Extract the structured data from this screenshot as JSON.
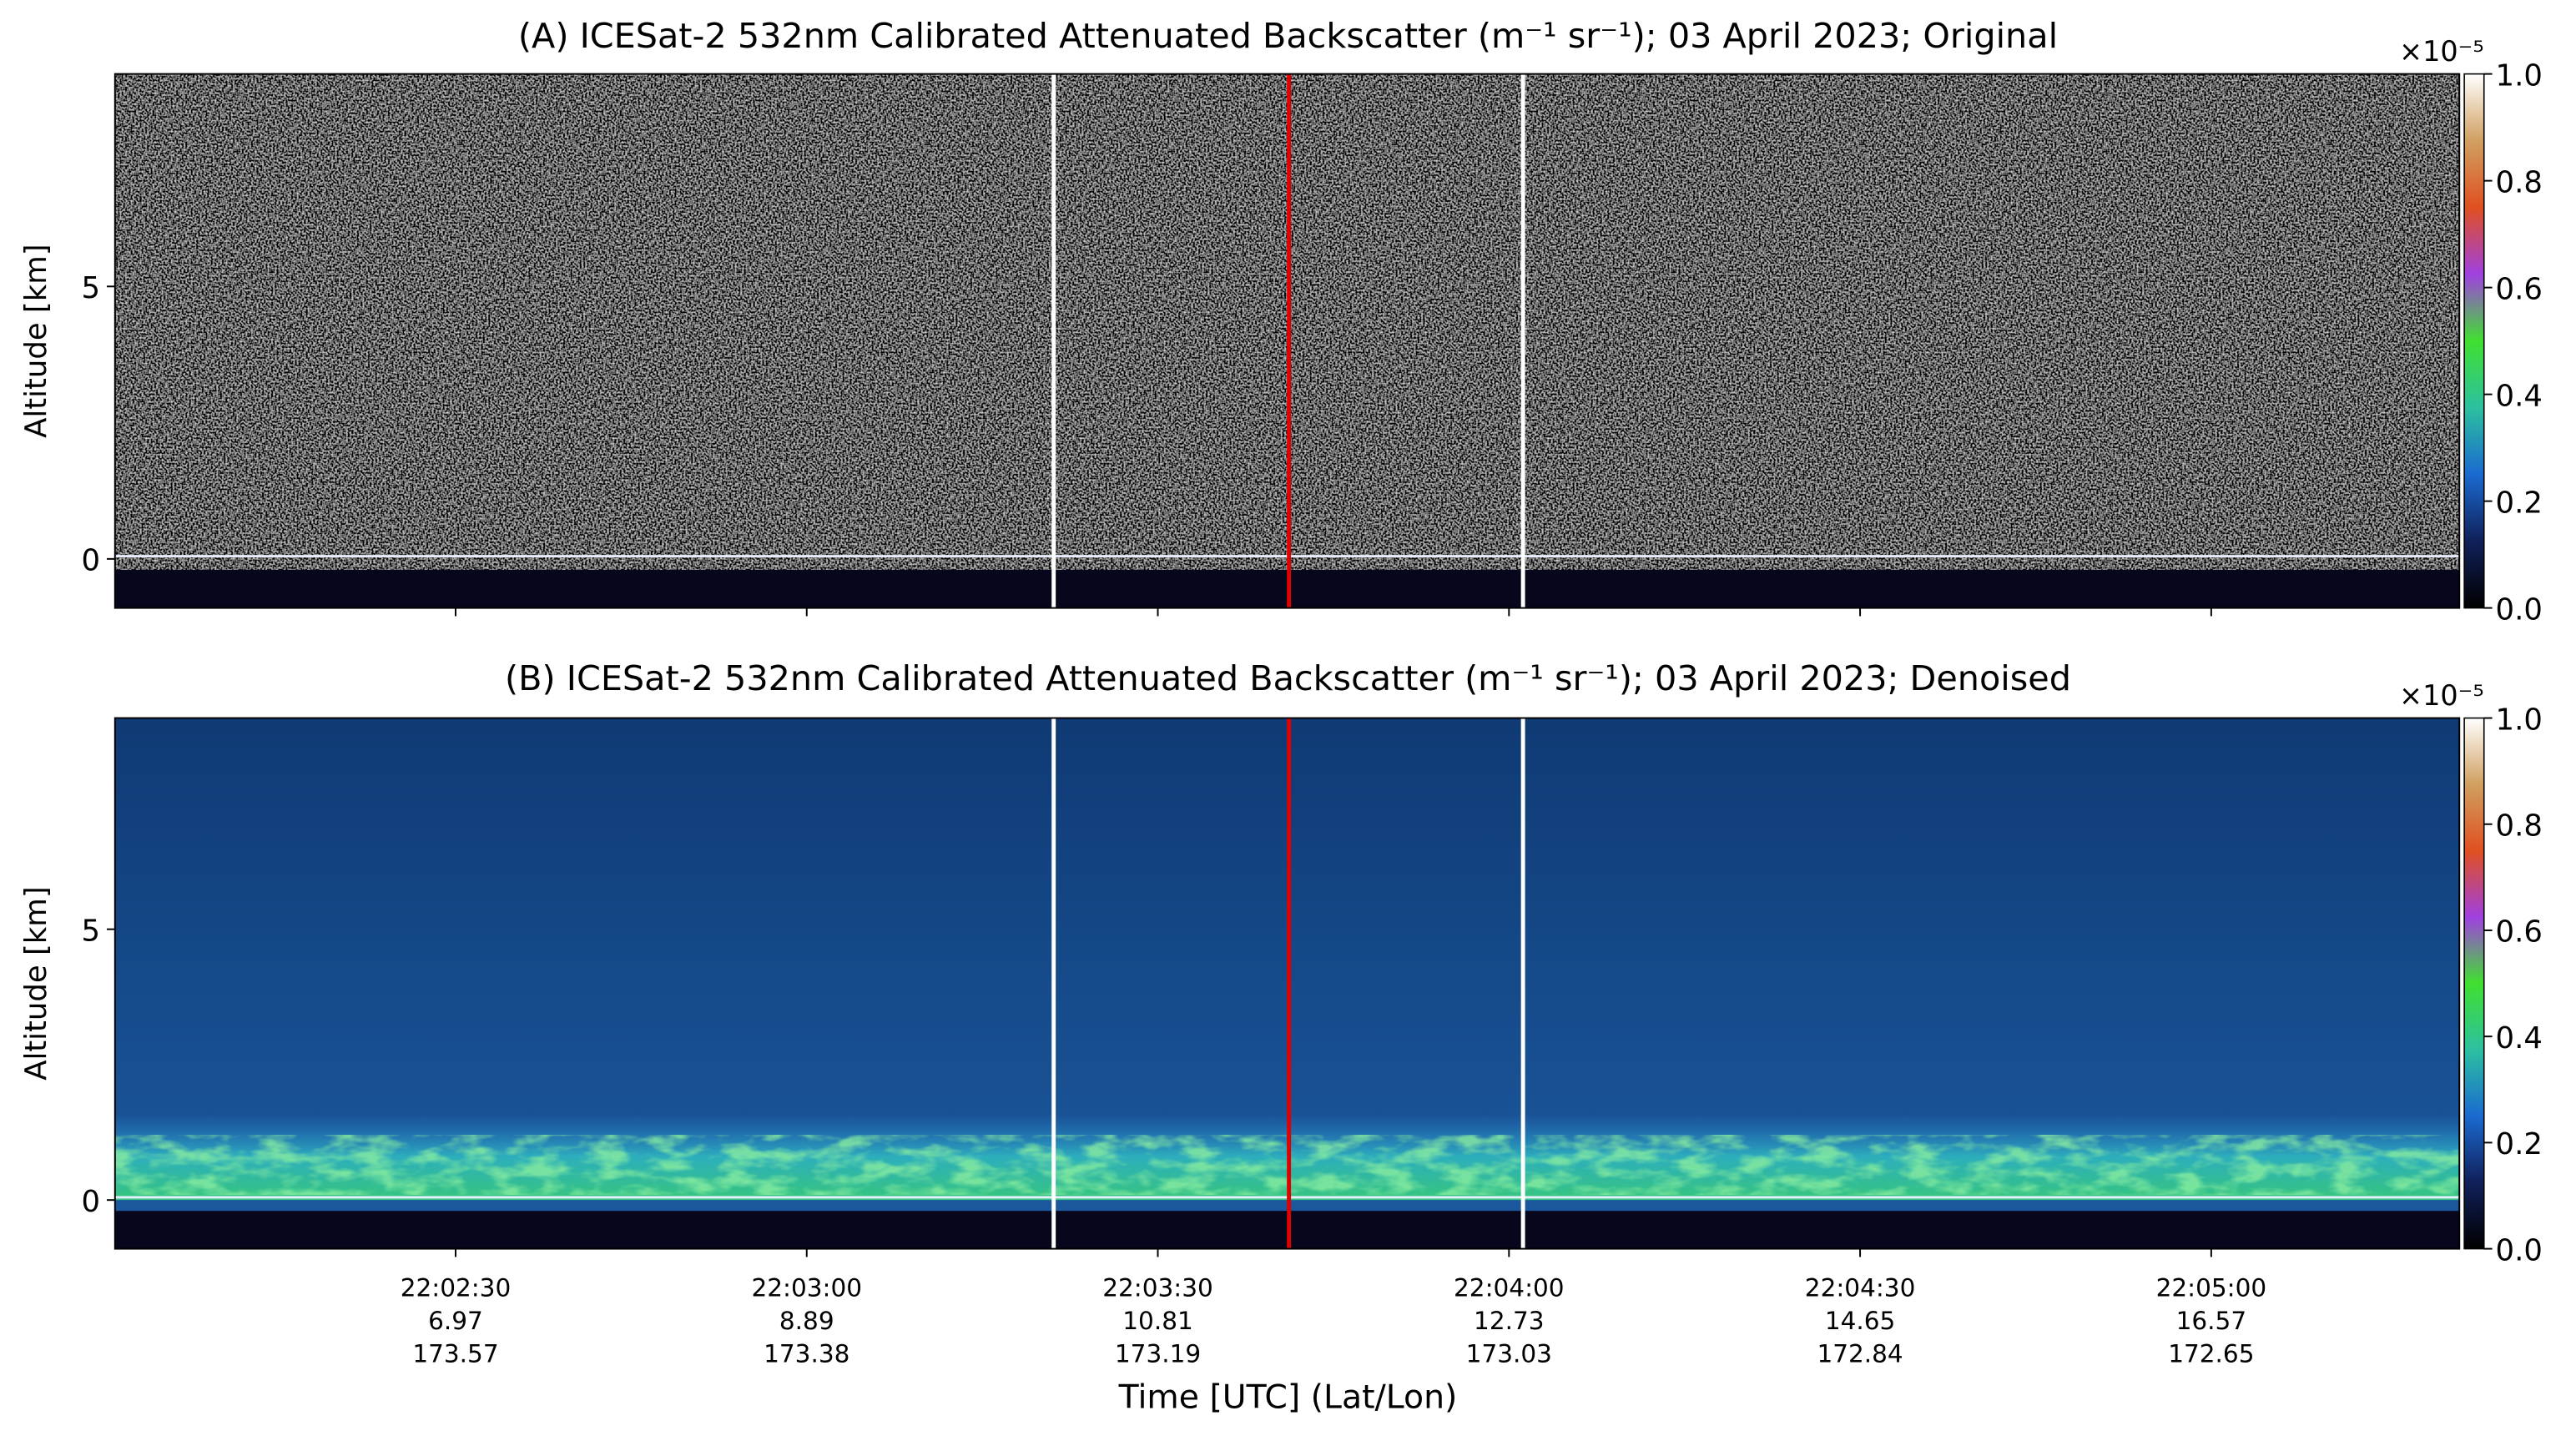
{
  "chart_data": [
    {
      "type": "heatmap",
      "title": "(A) ICESat-2 532nm Calibrated Attenuated Backscatter (m⁻¹ sr⁻¹); 03 April 2023; Original",
      "ylabel": "Altitude [km]",
      "ylim": [
        -0.9,
        8.9
      ],
      "yticks": [
        0,
        5
      ],
      "xlim": [
        120.9,
        321.2
      ],
      "vlines": [
        {
          "x": 201.1,
          "color": "#ffffff"
        },
        {
          "x": 221.2,
          "color": "#e00000"
        },
        {
          "x": 241.2,
          "color": "#ffffff"
        }
      ],
      "clim": [
        0,
        1
      ],
      "colorbar_offset": "×10⁻⁵",
      "cticks": [
        {
          "value": 0,
          "label": "0.0"
        },
        {
          "value": 0.2,
          "label": "0.2"
        },
        {
          "value": 0.4,
          "label": "0.4"
        },
        {
          "value": 0.6,
          "label": "0.6"
        },
        {
          "value": 0.8,
          "label": "0.8"
        },
        {
          "value": 1,
          "label": "1.0"
        }
      ],
      "colormap": [
        "#000000",
        "#10205a",
        "#1a6ad0",
        "#2cc0a0",
        "#40e030",
        "#a040e0",
        "#e05020",
        "#d0a060",
        "#ffffff"
      ]
    },
    {
      "type": "heatmap",
      "title": "(B) ICESat-2 532nm Calibrated Attenuated Backscatter (m⁻¹ sr⁻¹); 03 April 2023; Denoised",
      "ylabel": "Altitude [km]",
      "ylim": [
        -0.9,
        8.9
      ],
      "yticks": [
        0,
        5
      ],
      "xlim": [
        120.9,
        321.2
      ],
      "xticks": [
        {
          "value": 150,
          "label": "22:02:30"
        },
        {
          "value": 180,
          "label": "22:03:00"
        },
        {
          "value": 210,
          "label": "22:03:30"
        },
        {
          "value": 240,
          "label": "22:04:00"
        },
        {
          "value": 270,
          "label": "22:04:30"
        },
        {
          "value": 300,
          "label": "22:05:00"
        }
      ],
      "xtick_lat": [
        6.97,
        8.89,
        10.81,
        12.73,
        14.65,
        16.57
      ],
      "xtick_lon": [
        173.57,
        173.38,
        173.19,
        173.03,
        172.84,
        172.65
      ],
      "xlabel": "Time [UTC] (Lat/Lon)",
      "clim": [
        0,
        1
      ],
      "colorbar_offset": "×10⁻⁵",
      "cticks": [
        {
          "value": 0,
          "label": "0.0"
        },
        {
          "value": 0.2,
          "label": "0.2"
        },
        {
          "value": 0.4,
          "label": "0.4"
        },
        {
          "value": 0.6,
          "label": "0.6"
        },
        {
          "value": 0.8,
          "label": "0.8"
        },
        {
          "value": 1,
          "label": "1.0"
        }
      ],
      "colormap": [
        "#000000",
        "#10205a",
        "#1a6ad0",
        "#2cc0a0",
        "#40e030",
        "#a040e0",
        "#e05020",
        "#d0a060",
        "#ffffff"
      ]
    }
  ]
}
